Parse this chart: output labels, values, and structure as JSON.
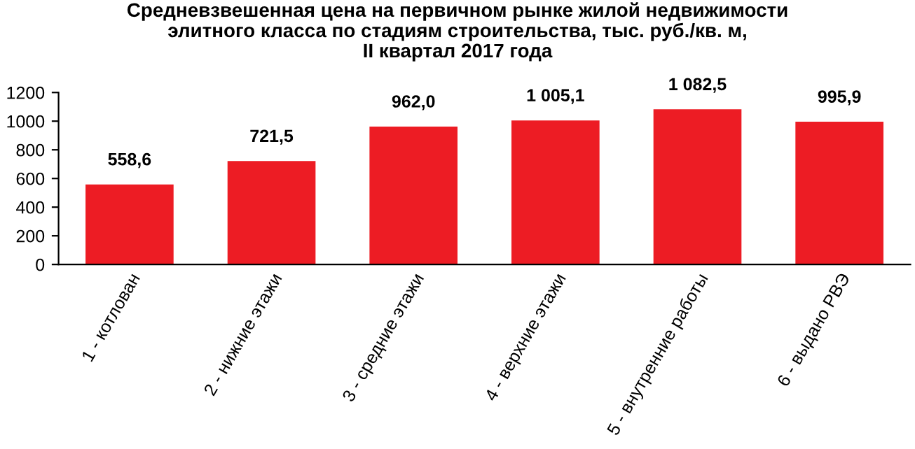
{
  "chart_data": {
    "type": "bar",
    "title": "Средневзвешенная цена на первичном рынке жилой недвижимости\nэлитного класса по стадиям строительства, тыс. руб./кв. м,\nII квартал 2017 года",
    "categories": [
      "1 - котлован",
      "2 - нижние этажи",
      "3 - средние этажи",
      "4 - верхние этажи",
      "5 - внутренние работы",
      "6 - выдано РВЭ"
    ],
    "values": [
      558.6,
      721.5,
      962.0,
      1005.1,
      1082.5,
      995.9
    ],
    "value_labels": [
      "558,6",
      "721,5",
      "962,0",
      "1 005,1",
      "1 082,5",
      "995,9"
    ],
    "color": "#ed1c24",
    "ylim": [
      0,
      1200
    ],
    "yticks": [
      0,
      200,
      400,
      600,
      800,
      1000,
      1200
    ],
    "grid": false
  }
}
